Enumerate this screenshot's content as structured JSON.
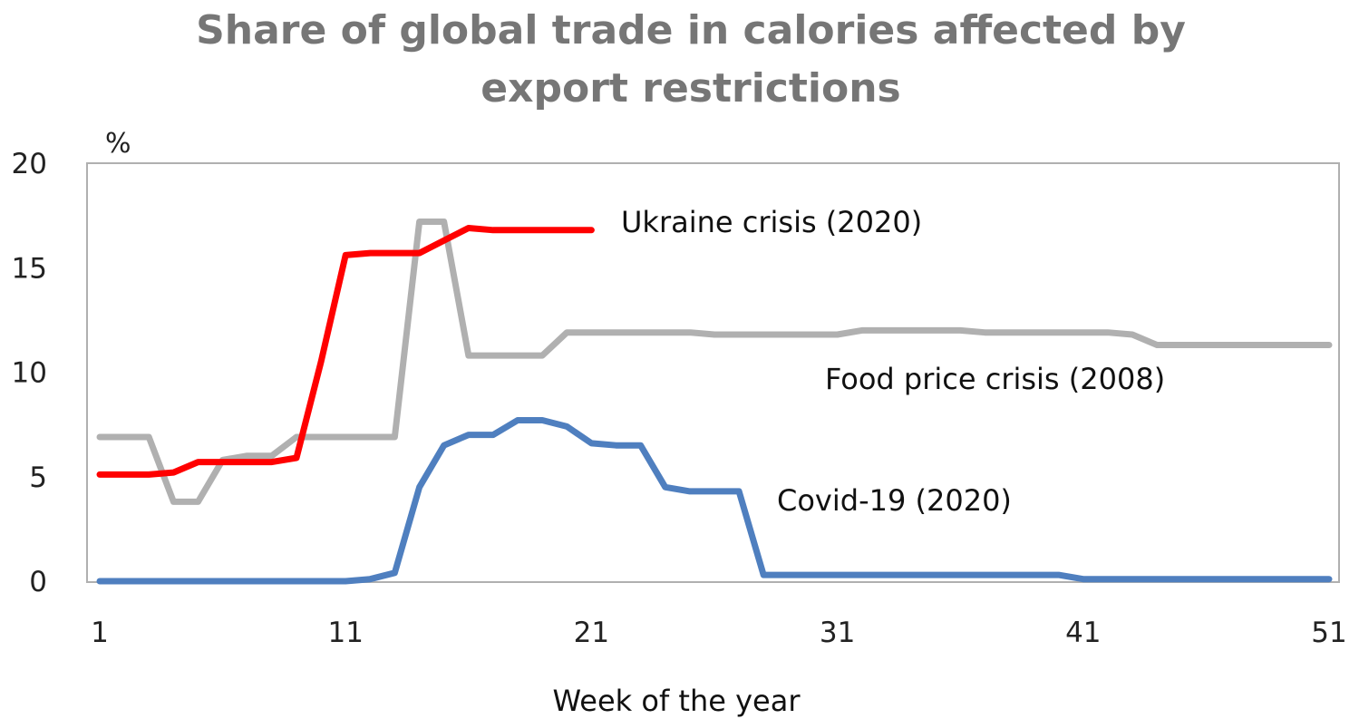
{
  "chart_data": {
    "type": "line",
    "title_lines": [
      "Share of global trade in calories affected by",
      "export restrictions"
    ],
    "ylabel": "%",
    "xlabel": "Week of the year",
    "xlim": [
      1,
      51
    ],
    "ylim": [
      0,
      20
    ],
    "xticks": [
      1,
      11,
      21,
      31,
      41,
      51
    ],
    "yticks": [
      0,
      5,
      10,
      15,
      20
    ],
    "grid": false,
    "legend": "none",
    "series": [
      {
        "name": "Food price crisis (2008)",
        "color": "#b0b0b0",
        "x": [
          1,
          2,
          3,
          4,
          5,
          6,
          7,
          8,
          9,
          10,
          11,
          12,
          13,
          14,
          15,
          16,
          17,
          18,
          19,
          20,
          21,
          22,
          23,
          24,
          25,
          26,
          27,
          28,
          29,
          30,
          31,
          32,
          33,
          34,
          35,
          36,
          37,
          38,
          39,
          40,
          41,
          42,
          43,
          44,
          45,
          46,
          47,
          48,
          49,
          50,
          51
        ],
        "values": [
          6.9,
          6.9,
          6.9,
          3.8,
          3.8,
          5.8,
          6.0,
          6.0,
          6.9,
          6.9,
          6.9,
          6.9,
          6.9,
          17.2,
          17.2,
          10.8,
          10.8,
          10.8,
          10.8,
          11.9,
          11.9,
          11.9,
          11.9,
          11.9,
          11.9,
          11.8,
          11.8,
          11.8,
          11.8,
          11.8,
          11.8,
          12.0,
          12.0,
          12.0,
          12.0,
          12.0,
          11.9,
          11.9,
          11.9,
          11.9,
          11.9,
          11.9,
          11.8,
          11.3,
          11.3,
          11.3,
          11.3,
          11.3,
          11.3,
          11.3,
          11.3
        ]
      },
      {
        "name": "Ukraine crisis (2020)",
        "color": "#ff0000",
        "x": [
          1,
          2,
          3,
          4,
          5,
          6,
          7,
          8,
          9,
          10,
          11,
          12,
          13,
          14,
          15,
          16,
          17,
          18,
          19,
          20,
          21
        ],
        "values": [
          5.1,
          5.1,
          5.1,
          5.2,
          5.7,
          5.7,
          5.7,
          5.7,
          5.9,
          10.5,
          15.6,
          15.7,
          15.7,
          15.7,
          16.3,
          16.9,
          16.8,
          16.8,
          16.8,
          16.8,
          16.8
        ]
      },
      {
        "name": "Covid-19 (2020)",
        "color": "#4f7fbf",
        "x": [
          1,
          2,
          3,
          4,
          5,
          6,
          7,
          8,
          9,
          10,
          11,
          12,
          13,
          14,
          15,
          16,
          17,
          18,
          19,
          20,
          21,
          22,
          23,
          24,
          25,
          26,
          27,
          28,
          29,
          30,
          31,
          32,
          33,
          34,
          35,
          36,
          37,
          38,
          39,
          40,
          41,
          42,
          43,
          44,
          45,
          46,
          47,
          48,
          49,
          50,
          51
        ],
        "values": [
          0,
          0,
          0,
          0,
          0,
          0,
          0,
          0,
          0,
          0,
          0,
          0.1,
          0.4,
          4.5,
          6.5,
          7.0,
          7.0,
          7.7,
          7.7,
          7.4,
          6.6,
          6.5,
          6.5,
          4.5,
          4.3,
          4.3,
          4.3,
          0.3,
          0.3,
          0.3,
          0.3,
          0.3,
          0.3,
          0.3,
          0.3,
          0.3,
          0.3,
          0.3,
          0.3,
          0.3,
          0.1,
          0.1,
          0.1,
          0.1,
          0.1,
          0.1,
          0.1,
          0.1,
          0.1,
          0.1,
          0.1
        ]
      }
    ]
  }
}
